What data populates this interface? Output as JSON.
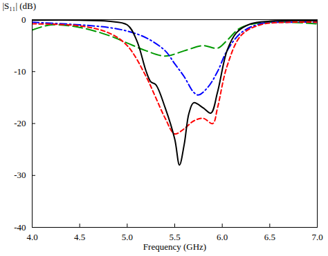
{
  "chart_data": {
    "type": "line",
    "x_label": "Frequency (GHz)",
    "y_label": "|S₁₁| (dB)",
    "xlim": [
      4,
      7
    ],
    "xticks": [
      {
        "value": 4,
        "label": "4.0"
      },
      {
        "value": 4.5,
        "label": "4.5"
      },
      {
        "value": 5,
        "label": "5.0"
      },
      {
        "value": 5.5,
        "label": "5.5"
      },
      {
        "value": 6,
        "label": "6.0"
      },
      {
        "value": 6.5,
        "label": "6.5"
      },
      {
        "value": 7,
        "label": "7.0"
      }
    ],
    "ylim": [
      -40,
      0
    ],
    "yticks": [
      -40,
      -30,
      -20,
      -10,
      0
    ],
    "grid": false,
    "series": [
      {
        "color": "#009900",
        "line_style": "long_dashed",
        "x": [
          4.0,
          4.2,
          4.5,
          4.8,
          5.0,
          5.2,
          5.4,
          5.6,
          5.8,
          5.95,
          6.05,
          6.2,
          6.5,
          7.0
        ],
        "values": [
          -2,
          -1,
          -1.5,
          -3,
          -4.5,
          -6,
          -7,
          -6,
          -5,
          -5.5,
          -4,
          -1.5,
          -0.5,
          -0.8
        ]
      },
      {
        "color": "#0000ff",
        "line_style": "dash_dot",
        "x": [
          4.0,
          4.5,
          4.8,
          5.0,
          5.2,
          5.4,
          5.5,
          5.6,
          5.7,
          5.75,
          5.85,
          5.95,
          6.05,
          6.2,
          6.4,
          6.7,
          7.0
        ],
        "values": [
          -0.5,
          -1,
          -1.5,
          -2.2,
          -3.5,
          -6,
          -8.5,
          -11,
          -14,
          -14.5,
          -13,
          -10,
          -6,
          -2.5,
          -0.8,
          -0.5,
          -0.5
        ]
      },
      {
        "color": "#ff0000",
        "line_style": "dashed",
        "x": [
          4.0,
          4.5,
          4.8,
          5.0,
          5.2,
          5.3,
          5.4,
          5.5,
          5.6,
          5.7,
          5.8,
          5.9,
          5.95,
          6.05,
          6.2,
          6.4,
          6.7,
          7.0
        ],
        "values": [
          -0.8,
          -1.2,
          -2.5,
          -5,
          -11,
          -15,
          -19,
          -22,
          -21,
          -19.5,
          -19,
          -20,
          -17,
          -9,
          -3,
          -1,
          -0.5,
          -0.5
        ]
      },
      {
        "color": "#000000",
        "line_style": "solid",
        "x": [
          4.0,
          4.5,
          4.8,
          5.0,
          5.1,
          5.2,
          5.25,
          5.3,
          5.4,
          5.5,
          5.55,
          5.6,
          5.65,
          5.7,
          5.8,
          5.88,
          5.95,
          6.05,
          6.15,
          6.3,
          6.5,
          7.0
        ],
        "values": [
          -0.1,
          -0.1,
          -0.3,
          -1,
          -4,
          -10,
          -12,
          -12.5,
          -17,
          -23,
          -28,
          -24,
          -18,
          -16,
          -17,
          -18,
          -14,
          -6,
          -2.5,
          -0.8,
          -0.3,
          -0.2
        ]
      }
    ]
  }
}
